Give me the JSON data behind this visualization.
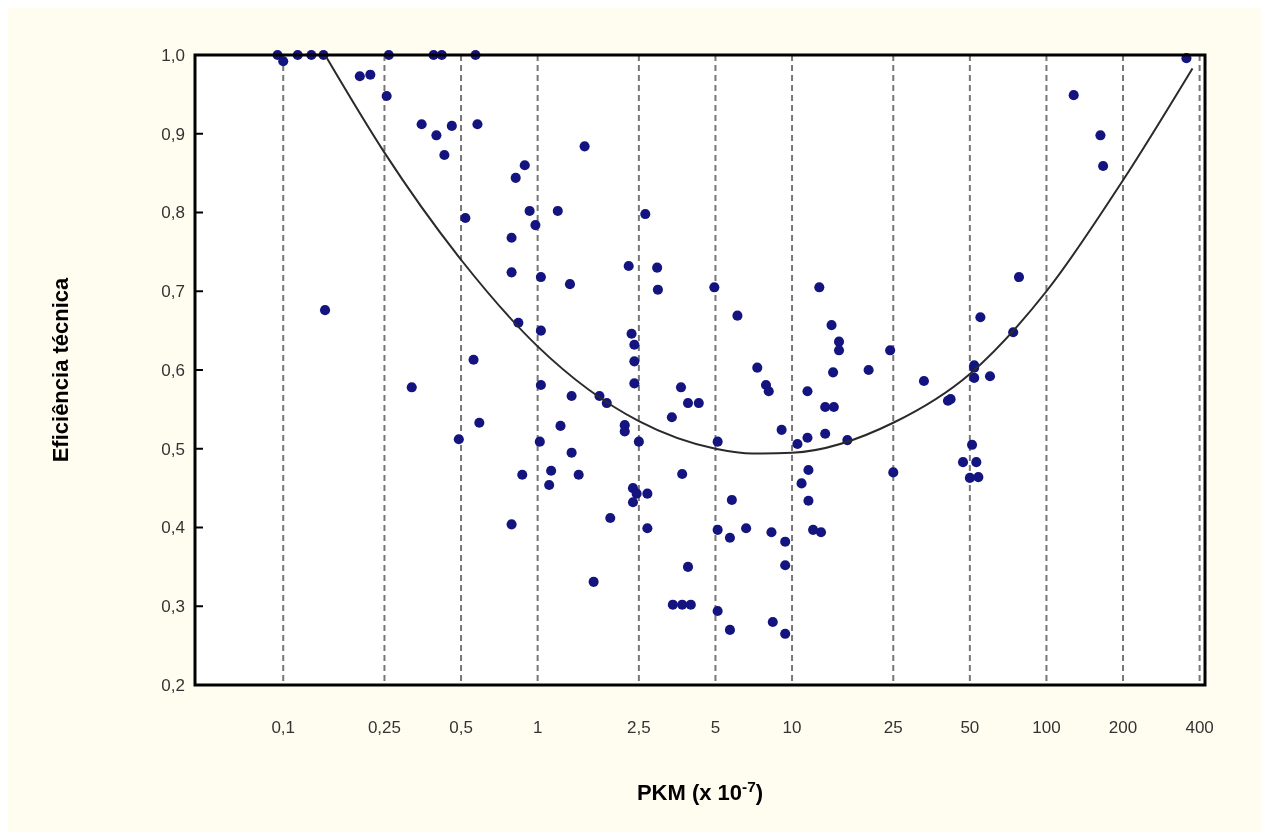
{
  "chart_data": {
    "type": "scatter",
    "xlabel": "PKM  (x 10$^{-7}$)",
    "ylabel": "Eficiência técnica",
    "log": "x",
    "grid": "x",
    "marker": "circle",
    "xlim": [
      0.045,
      420
    ],
    "ylim": [
      0.2,
      1.0
    ],
    "xticks": [
      {
        "value": 0.1,
        "label": "0,1"
      },
      {
        "value": 0.25,
        "label": "0,25"
      },
      {
        "value": 0.5,
        "label": "0,5"
      },
      1,
      {
        "value": 2.5,
        "label": "2,5"
      },
      5,
      10,
      25,
      50,
      100,
      200,
      400
    ],
    "yticks": [
      {
        "value": 0.2,
        "label": "0,2"
      },
      {
        "value": 0.3,
        "label": "0,3"
      },
      {
        "value": 0.4,
        "label": "0,4"
      },
      {
        "value": 0.5,
        "label": "0,5"
      },
      {
        "value": 0.6,
        "label": "0,6"
      },
      {
        "value": 0.7,
        "label": "0,7"
      },
      {
        "value": 0.8,
        "label": "0,8"
      },
      {
        "value": 0.9,
        "label": "0,9"
      },
      {
        "value": 1.0,
        "label": "1,0"
      }
    ],
    "series": [
      {
        "color": "#141480",
        "x": [
          0.095,
          0.1,
          0.114,
          0.129,
          0.144,
          0.26,
          0.39,
          0.42,
          0.57,
          0.2,
          0.22,
          0.255,
          0.35,
          0.4,
          0.46,
          0.58,
          0.43,
          1.53,
          0.89,
          0.82,
          0.93,
          1.2,
          0.98,
          0.52,
          0.79,
          0.79,
          1.03,
          1.34,
          0.146,
          0.84,
          1.03,
          0.56,
          0.32,
          0.59,
          0.49,
          1.03,
          1.36,
          1.75,
          1.87,
          1.23,
          1.02,
          1.36,
          0.87,
          1.13,
          1.45,
          1.11,
          0.79,
          1.93,
          1.66,
          355,
          128,
          163,
          167,
          78,
          55,
          74,
          52,
          2.65,
          2.28,
          2.95,
          2.97,
          4.95,
          6.1,
          12.8,
          14.3,
          15.3,
          15.3,
          24.3,
          2.34,
          2.4,
          2.4,
          7.3,
          14.5,
          20,
          2.4,
          3.66,
          3.9,
          4.3,
          3.37,
          2.2,
          2.2,
          2.5,
          5.1,
          7.9,
          8.1,
          11.5,
          13.5,
          14.6,
          9.1,
          10.5,
          11.5,
          13.5,
          16.5,
          33,
          41,
          42,
          52,
          52,
          60,
          51,
          47,
          53,
          50,
          54,
          25,
          3.7,
          2.37,
          2.45,
          2.7,
          2.37,
          11.6,
          10.9,
          11.6,
          5.8,
          2.7,
          5.1,
          5.7,
          6.6,
          8.3,
          9.4,
          12.1,
          13,
          9.4,
          3.9,
          3.4,
          3.7,
          4.0,
          5.1,
          5.7,
          8.4,
          9.4
        ],
        "values": [
          1.0,
          0.992,
          1.0,
          1.0,
          1.0,
          1.0,
          1.0,
          1.0,
          1.0,
          0.973,
          0.975,
          0.948,
          0.912,
          0.898,
          0.91,
          0.912,
          0.873,
          0.884,
          0.86,
          0.844,
          0.802,
          0.802,
          0.784,
          0.793,
          0.768,
          0.724,
          0.718,
          0.709,
          0.676,
          0.66,
          0.65,
          0.613,
          0.578,
          0.533,
          0.512,
          0.581,
          0.567,
          0.567,
          0.558,
          0.529,
          0.509,
          0.495,
          0.467,
          0.472,
          0.467,
          0.454,
          0.404,
          0.412,
          0.331,
          0.996,
          0.949,
          0.898,
          0.859,
          0.718,
          0.667,
          0.648,
          0.606,
          0.798,
          0.732,
          0.73,
          0.702,
          0.705,
          0.669,
          0.705,
          0.657,
          0.636,
          0.625,
          0.625,
          0.646,
          0.632,
          0.611,
          0.603,
          0.597,
          0.6,
          0.583,
          0.578,
          0.558,
          0.558,
          0.54,
          0.53,
          0.522,
          0.509,
          0.509,
          0.581,
          0.573,
          0.573,
          0.553,
          0.553,
          0.524,
          0.506,
          0.514,
          0.519,
          0.511,
          0.586,
          0.561,
          0.563,
          0.603,
          0.59,
          0.592,
          0.505,
          0.483,
          0.483,
          0.463,
          0.464,
          0.47,
          0.468,
          0.45,
          0.443,
          0.443,
          0.432,
          0.473,
          0.456,
          0.434,
          0.435,
          0.399,
          0.397,
          0.387,
          0.399,
          0.394,
          0.382,
          0.397,
          0.394,
          0.352,
          0.35,
          0.302,
          0.302,
          0.302,
          0.294,
          0.27,
          0.28,
          0.265
        ]
      },
      {
        "type": "line",
        "marker": "none",
        "color": "#2a2a2a",
        "x": [
          0.146,
          0.25,
          0.5,
          1,
          2.5,
          5,
          7,
          10,
          25,
          50,
          100,
          200,
          375
        ],
        "values": [
          1.0,
          0.876,
          0.74,
          0.63,
          0.535,
          0.5,
          0.494,
          0.495,
          0.533,
          0.595,
          0.7,
          0.841,
          0.983
        ]
      }
    ]
  }
}
